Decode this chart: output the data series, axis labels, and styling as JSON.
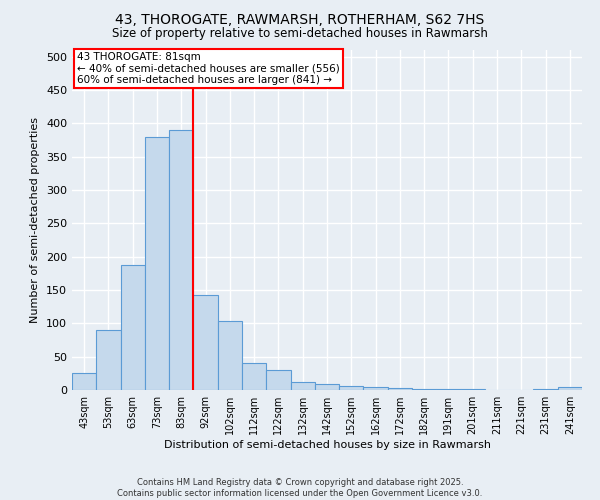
{
  "title1": "43, THOROGATE, RAWMARSH, ROTHERHAM, S62 7HS",
  "title2": "Size of property relative to semi-detached houses in Rawmarsh",
  "xlabel": "Distribution of semi-detached houses by size in Rawmarsh",
  "ylabel": "Number of semi-detached properties",
  "categories": [
    "43sqm",
    "53sqm",
    "63sqm",
    "73sqm",
    "83sqm",
    "92sqm",
    "102sqm",
    "112sqm",
    "122sqm",
    "132sqm",
    "142sqm",
    "152sqm",
    "162sqm",
    "172sqm",
    "182sqm",
    "191sqm",
    "201sqm",
    "211sqm",
    "221sqm",
    "231sqm",
    "241sqm"
  ],
  "values": [
    25,
    90,
    187,
    380,
    390,
    143,
    103,
    40,
    30,
    12,
    9,
    6,
    4,
    3,
    2,
    1,
    1,
    0,
    0,
    1,
    4
  ],
  "bar_color": "#c5d9ec",
  "bar_edge_color": "#5b9bd5",
  "red_line_x": 4.5,
  "annotation_title": "43 THOROGATE: 81sqm",
  "annotation_line1": "← 40% of semi-detached houses are smaller (556)",
  "annotation_line2": "60% of semi-detached houses are larger (841) →",
  "footer1": "Contains HM Land Registry data © Crown copyright and database right 2025.",
  "footer2": "Contains public sector information licensed under the Open Government Licence v3.0.",
  "ylim": [
    0,
    510
  ],
  "yticks": [
    0,
    50,
    100,
    150,
    200,
    250,
    300,
    350,
    400,
    450,
    500
  ],
  "bg_color": "#e8eef4",
  "grid_color": "#ffffff"
}
